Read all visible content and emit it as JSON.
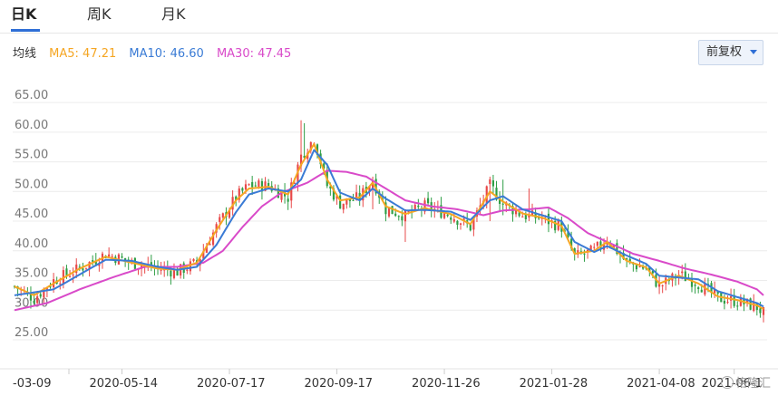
{
  "tabs": {
    "day": "日K",
    "week": "周K",
    "month": "月K"
  },
  "legend": {
    "label": "均线",
    "ma5": "MA5: 47.21",
    "ma10": "MA10: 46.60",
    "ma30": "MA30: 47.45"
  },
  "adjust_button": "前复权",
  "watermark": "格隆汇",
  "colors": {
    "up": "#e84848",
    "down": "#2e9e45",
    "ma5": "#f5a623",
    "ma10": "#3a7bd5",
    "ma30": "#d94ac9",
    "accent": "#2f6fd6"
  },
  "chart_data": {
    "type": "candlestick",
    "ylim": [
      25,
      67
    ],
    "ytick_labels": [
      "25.00",
      "30.00",
      "35.00",
      "40.00",
      "45.00",
      "50.00",
      "55.00",
      "60.00",
      "65.00"
    ],
    "yticks": [
      25,
      30,
      35,
      40,
      45,
      50,
      55,
      60,
      65
    ],
    "xtick_labels": [
      "-03-09",
      "2020-05-14",
      "2020-07-17",
      "2020-09-17",
      "2020-11-26",
      "2021-01-28",
      "2021-04-08",
      "2021-06-1"
    ],
    "close_trend": [
      {
        "d": 0,
        "v": 34
      },
      {
        "d": 6,
        "v": 32
      },
      {
        "d": 12,
        "v": 35
      },
      {
        "d": 20,
        "v": 37
      },
      {
        "d": 28,
        "v": 39.5
      },
      {
        "d": 36,
        "v": 38
      },
      {
        "d": 44,
        "v": 37
      },
      {
        "d": 50,
        "v": 36.5
      },
      {
        "d": 56,
        "v": 38
      },
      {
        "d": 62,
        "v": 44
      },
      {
        "d": 68,
        "v": 49
      },
      {
        "d": 72,
        "v": 51
      },
      {
        "d": 78,
        "v": 51
      },
      {
        "d": 84,
        "v": 49
      },
      {
        "d": 88,
        "v": 56
      },
      {
        "d": 92,
        "v": 59
      },
      {
        "d": 96,
        "v": 51
      },
      {
        "d": 100,
        "v": 48
      },
      {
        "d": 106,
        "v": 49
      },
      {
        "d": 110,
        "v": 52
      },
      {
        "d": 114,
        "v": 47
      },
      {
        "d": 120,
        "v": 46
      },
      {
        "d": 126,
        "v": 47.5
      },
      {
        "d": 134,
        "v": 46
      },
      {
        "d": 140,
        "v": 44
      },
      {
        "d": 146,
        "v": 51
      },
      {
        "d": 150,
        "v": 48
      },
      {
        "d": 156,
        "v": 46
      },
      {
        "d": 162,
        "v": 45.5
      },
      {
        "d": 168,
        "v": 44
      },
      {
        "d": 172,
        "v": 39
      },
      {
        "d": 178,
        "v": 40
      },
      {
        "d": 182,
        "v": 42
      },
      {
        "d": 188,
        "v": 38
      },
      {
        "d": 194,
        "v": 37
      },
      {
        "d": 198,
        "v": 34
      },
      {
        "d": 204,
        "v": 36
      },
      {
        "d": 210,
        "v": 34.5
      },
      {
        "d": 216,
        "v": 32
      },
      {
        "d": 222,
        "v": 31.5
      },
      {
        "d": 228,
        "v": 30.5
      },
      {
        "d": 230,
        "v": 29.5
      }
    ],
    "ma5_trend": [
      {
        "d": 0,
        "v": 34
      },
      {
        "d": 6,
        "v": 32.5
      },
      {
        "d": 12,
        "v": 34.5
      },
      {
        "d": 20,
        "v": 37
      },
      {
        "d": 28,
        "v": 39
      },
      {
        "d": 36,
        "v": 38
      },
      {
        "d": 44,
        "v": 37
      },
      {
        "d": 50,
        "v": 36.8
      },
      {
        "d": 56,
        "v": 38
      },
      {
        "d": 62,
        "v": 43.5
      },
      {
        "d": 68,
        "v": 48.5
      },
      {
        "d": 72,
        "v": 50.5
      },
      {
        "d": 78,
        "v": 50.8
      },
      {
        "d": 84,
        "v": 49.5
      },
      {
        "d": 88,
        "v": 54.5
      },
      {
        "d": 92,
        "v": 58
      },
      {
        "d": 96,
        "v": 52
      },
      {
        "d": 100,
        "v": 48.5
      },
      {
        "d": 106,
        "v": 49
      },
      {
        "d": 110,
        "v": 51.5
      },
      {
        "d": 114,
        "v": 47.5
      },
      {
        "d": 120,
        "v": 46.2
      },
      {
        "d": 126,
        "v": 47.2
      },
      {
        "d": 134,
        "v": 46.2
      },
      {
        "d": 140,
        "v": 44.5
      },
      {
        "d": 146,
        "v": 50
      },
      {
        "d": 150,
        "v": 48.3
      },
      {
        "d": 156,
        "v": 46.3
      },
      {
        "d": 162,
        "v": 45.6
      },
      {
        "d": 168,
        "v": 44.2
      },
      {
        "d": 172,
        "v": 39.5
      },
      {
        "d": 178,
        "v": 40
      },
      {
        "d": 182,
        "v": 41.5
      },
      {
        "d": 188,
        "v": 38.3
      },
      {
        "d": 194,
        "v": 37.2
      },
      {
        "d": 198,
        "v": 34.5
      },
      {
        "d": 204,
        "v": 35.8
      },
      {
        "d": 210,
        "v": 34.5
      },
      {
        "d": 216,
        "v": 32.3
      },
      {
        "d": 222,
        "v": 31.7
      },
      {
        "d": 228,
        "v": 30.8
      },
      {
        "d": 230,
        "v": 30.2
      }
    ],
    "ma10_trend": [
      {
        "d": 0,
        "v": 32.5
      },
      {
        "d": 6,
        "v": 33
      },
      {
        "d": 12,
        "v": 33.5
      },
      {
        "d": 20,
        "v": 36
      },
      {
        "d": 28,
        "v": 38.5
      },
      {
        "d": 36,
        "v": 38.3
      },
      {
        "d": 44,
        "v": 37.3
      },
      {
        "d": 50,
        "v": 36.8
      },
      {
        "d": 56,
        "v": 37.3
      },
      {
        "d": 62,
        "v": 41
      },
      {
        "d": 68,
        "v": 46.5
      },
      {
        "d": 72,
        "v": 49.5
      },
      {
        "d": 78,
        "v": 50.5
      },
      {
        "d": 84,
        "v": 50
      },
      {
        "d": 88,
        "v": 52
      },
      {
        "d": 92,
        "v": 57
      },
      {
        "d": 96,
        "v": 54.5
      },
      {
        "d": 100,
        "v": 49.8
      },
      {
        "d": 106,
        "v": 48.5
      },
      {
        "d": 110,
        "v": 50.5
      },
      {
        "d": 114,
        "v": 48.8
      },
      {
        "d": 120,
        "v": 46.8
      },
      {
        "d": 126,
        "v": 46.9
      },
      {
        "d": 134,
        "v": 46.6
      },
      {
        "d": 140,
        "v": 45.2
      },
      {
        "d": 146,
        "v": 48.5
      },
      {
        "d": 150,
        "v": 49.2
      },
      {
        "d": 156,
        "v": 47
      },
      {
        "d": 162,
        "v": 46
      },
      {
        "d": 168,
        "v": 45
      },
      {
        "d": 172,
        "v": 41.5
      },
      {
        "d": 178,
        "v": 39.8
      },
      {
        "d": 182,
        "v": 40.8
      },
      {
        "d": 188,
        "v": 39.2
      },
      {
        "d": 194,
        "v": 37.8
      },
      {
        "d": 198,
        "v": 35.8
      },
      {
        "d": 204,
        "v": 35.5
      },
      {
        "d": 210,
        "v": 35.2
      },
      {
        "d": 216,
        "v": 33.2
      },
      {
        "d": 222,
        "v": 32.2
      },
      {
        "d": 228,
        "v": 31.2
      },
      {
        "d": 230,
        "v": 30.6
      }
    ],
    "ma30_trend": [
      {
        "d": 0,
        "v": 30
      },
      {
        "d": 10,
        "v": 31.2
      },
      {
        "d": 20,
        "v": 33.5
      },
      {
        "d": 30,
        "v": 35.5
      },
      {
        "d": 40,
        "v": 37.3
      },
      {
        "d": 50,
        "v": 37.3
      },
      {
        "d": 58,
        "v": 38
      },
      {
        "d": 64,
        "v": 40
      },
      {
        "d": 70,
        "v": 44
      },
      {
        "d": 76,
        "v": 47.5
      },
      {
        "d": 82,
        "v": 49.8
      },
      {
        "d": 90,
        "v": 51.5
      },
      {
        "d": 96,
        "v": 53.5
      },
      {
        "d": 102,
        "v": 53.3
      },
      {
        "d": 108,
        "v": 52.5
      },
      {
        "d": 114,
        "v": 50.5
      },
      {
        "d": 120,
        "v": 48.5
      },
      {
        "d": 128,
        "v": 47.5
      },
      {
        "d": 136,
        "v": 47
      },
      {
        "d": 144,
        "v": 46
      },
      {
        "d": 150,
        "v": 46.8
      },
      {
        "d": 158,
        "v": 47
      },
      {
        "d": 164,
        "v": 47.3
      },
      {
        "d": 170,
        "v": 45.5
      },
      {
        "d": 176,
        "v": 43
      },
      {
        "d": 182,
        "v": 41.5
      },
      {
        "d": 190,
        "v": 39.5
      },
      {
        "d": 198,
        "v": 38.3
      },
      {
        "d": 206,
        "v": 37
      },
      {
        "d": 214,
        "v": 36
      },
      {
        "d": 222,
        "v": 34.8
      },
      {
        "d": 228,
        "v": 33.5
      },
      {
        "d": 230,
        "v": 32.5
      }
    ],
    "spikes": [
      {
        "d": 88,
        "high": 62,
        "low": 56
      },
      {
        "d": 89,
        "high": 61.5,
        "low": 57
      },
      {
        "d": 110,
        "high": 52.5,
        "low": 47
      },
      {
        "d": 146,
        "high": 52.5,
        "low": 45
      },
      {
        "d": 150,
        "high": 52,
        "low": 46
      },
      {
        "d": 158,
        "high": 50.5,
        "low": 45
      },
      {
        "d": 120,
        "high": 47,
        "low": 41.5
      },
      {
        "d": 230,
        "high": 30,
        "low": 28.5
      }
    ],
    "xtick_days": [
      0,
      33,
      66,
      99,
      132,
      165,
      198,
      221
    ],
    "last_day": 230
  }
}
